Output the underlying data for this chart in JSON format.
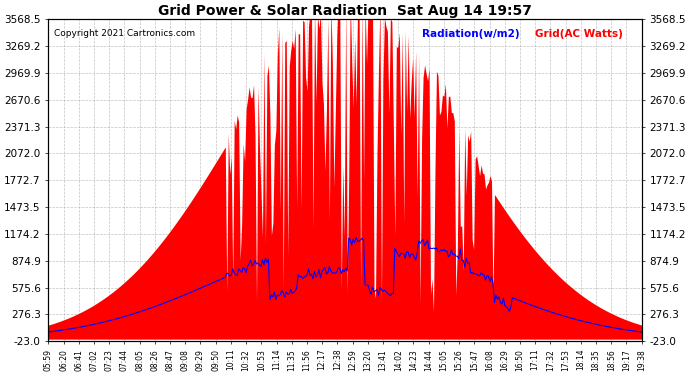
{
  "title": "Grid Power & Solar Radiation  Sat Aug 14 19:57",
  "copyright": "Copyright 2021 Cartronics.com",
  "legend_radiation": "Radiation(w/m2)",
  "legend_grid": "Grid(AC Watts)",
  "y_ticks": [
    -23.0,
    276.3,
    575.6,
    874.9,
    1174.2,
    1473.5,
    1772.7,
    2072.0,
    2371.3,
    2670.6,
    2969.9,
    3269.2,
    3568.5
  ],
  "ylim": [
    -23.0,
    3568.5
  ],
  "background_color": "#ffffff",
  "grid_color": "#aaaaaa",
  "red_fill_color": "red",
  "blue_line_color": "blue",
  "x_labels": [
    "05:59",
    "06:20",
    "06:41",
    "07:02",
    "07:23",
    "07:44",
    "08:05",
    "08:26",
    "08:47",
    "09:08",
    "09:29",
    "09:50",
    "10:11",
    "10:32",
    "10:53",
    "11:14",
    "11:35",
    "11:56",
    "12:17",
    "12:38",
    "12:59",
    "13:20",
    "13:41",
    "14:02",
    "14:23",
    "14:44",
    "15:05",
    "15:26",
    "15:47",
    "16:08",
    "16:29",
    "16:50",
    "17:11",
    "17:32",
    "17:53",
    "18:14",
    "18:35",
    "18:56",
    "19:17",
    "19:38"
  ],
  "n_points": 400,
  "solar_peak_t": 0.5,
  "solar_sigma": 0.2,
  "solar_max": 3568.5,
  "grid_max": 1050,
  "grid_peak_t": 0.5,
  "grid_sigma": 0.22
}
